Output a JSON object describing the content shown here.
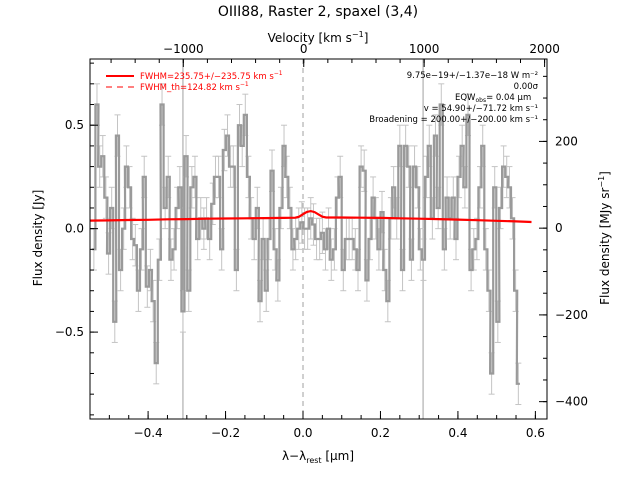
{
  "chart_data": {
    "type": "line",
    "title": "OIII88, Raster 2, spaxel (3,4)",
    "xlabel": "λ−λ",
    "xlabel_sub": "rest",
    "xlabel_unit": " [μm]",
    "ylabel": "Flux density [Jy]",
    "ylabel2": "Flux density [MJy sr",
    "ylabel2_sup": "−1",
    "ylabel2_end": "]",
    "toplabel": "Velocity [km s",
    "toplabel_sup": "−1",
    "toplabel_end": "]",
    "xlim": [
      -0.55,
      0.63
    ],
    "ylim": [
      -0.92,
      0.82
    ],
    "y2lim": [
      -440,
      390
    ],
    "top_lim": [
      -1775,
      2020
    ],
    "x_ticks": [
      -0.4,
      -0.2,
      0.0,
      0.2,
      0.4,
      0.6
    ],
    "x_tick_labels": [
      "−0.4",
      "−0.2",
      "0.0",
      "0.2",
      "0.4",
      "0.6"
    ],
    "y_ticks": [
      -0.5,
      0.0,
      0.5
    ],
    "y_tick_labels": [
      "−0.5",
      "0.0",
      "0.5"
    ],
    "y2_ticks": [
      -400,
      -200,
      0,
      200
    ],
    "y2_tick_labels": [
      "−400",
      "−200",
      "0",
      "200"
    ],
    "top_ticks": [
      -1000,
      0,
      1000,
      2000
    ],
    "top_tick_labels": [
      "−1000",
      "0",
      "1000",
      "2000"
    ],
    "vlines_x": [
      -0.31,
      0.0,
      0.31
    ],
    "legend": {
      "position": "top-left",
      "items": [
        {
          "label": "FWHM=235.75+/−235.75 km s",
          "sup": "−1",
          "style": "solid",
          "color": "#ff0000"
        },
        {
          "label": "FWHM_th=124.82 km s",
          "sup": "−1",
          "style": "dashed",
          "color": "#ff0000"
        }
      ]
    },
    "annotations": [
      "9.75e−19+/−1.37e−18 W m⁻²",
      "0.00σ",
      "EQW",
      "obs",
      "= 0.04 μm",
      "v = 54.90+/−71.72 km s⁻¹",
      "Broadening = 200.00+/−200.00 km s⁻¹"
    ],
    "series": [
      {
        "name": "spectrum",
        "style": "steps",
        "color": "#9a9a9a",
        "x": [
          -0.54,
          -0.532,
          -0.525,
          -0.517,
          -0.509,
          -0.502,
          -0.494,
          -0.486,
          -0.479,
          -0.471,
          -0.463,
          -0.456,
          -0.448,
          -0.44,
          -0.433,
          -0.425,
          -0.417,
          -0.41,
          -0.402,
          -0.394,
          -0.387,
          -0.379,
          -0.371,
          -0.364,
          -0.356,
          -0.348,
          -0.341,
          -0.333,
          -0.325,
          -0.318,
          -0.31,
          -0.302,
          -0.295,
          -0.287,
          -0.279,
          -0.272,
          -0.264,
          -0.256,
          -0.249,
          -0.241,
          -0.233,
          -0.226,
          -0.218,
          -0.21,
          -0.203,
          -0.195,
          -0.187,
          -0.18,
          -0.172,
          -0.164,
          -0.157,
          -0.149,
          -0.141,
          -0.134,
          -0.126,
          -0.118,
          -0.111,
          -0.103,
          -0.095,
          -0.088,
          -0.08,
          -0.072,
          -0.065,
          -0.057,
          -0.049,
          -0.042,
          -0.034,
          -0.026,
          -0.019,
          -0.011,
          -0.003,
          0.004,
          0.012,
          0.02,
          0.027,
          0.035,
          0.043,
          0.05,
          0.058,
          0.066,
          0.073,
          0.081,
          0.089,
          0.096,
          0.104,
          0.112,
          0.119,
          0.127,
          0.135,
          0.142,
          0.15,
          0.158,
          0.165,
          0.173,
          0.181,
          0.188,
          0.196,
          0.204,
          0.211,
          0.219,
          0.227,
          0.234,
          0.242,
          0.25,
          0.257,
          0.265,
          0.273,
          0.28,
          0.288,
          0.296,
          0.303,
          0.311,
          0.319,
          0.326,
          0.334,
          0.342,
          0.349,
          0.357,
          0.365,
          0.372,
          0.38,
          0.388,
          0.395,
          0.403,
          0.411,
          0.418,
          0.426,
          0.434,
          0.441,
          0.449,
          0.457,
          0.464,
          0.472,
          0.48,
          0.487,
          0.495,
          0.503,
          0.51,
          0.518,
          0.526,
          0.533,
          0.541,
          0.549,
          0.556
        ],
        "y": [
          -0.1,
          0.6,
          0.3,
          0.35,
          0.15,
          -0.12,
          0.1,
          -0.45,
          0.45,
          -0.2,
          0.0,
          0.3,
          0.2,
          -0.05,
          -0.08,
          -0.3,
          -0.1,
          0.25,
          -0.28,
          -0.2,
          -0.35,
          -0.65,
          -0.15,
          0.6,
          0.1,
          0.25,
          -0.15,
          -0.1,
          0.1,
          0.2,
          -0.4,
          0.35,
          -0.3,
          0.2,
          0.25,
          -0.05,
          0.05,
          0.0,
          0.05,
          -0.05,
          0.12,
          0.25,
          0.25,
          -0.1,
          0.38,
          0.45,
          0.3,
          0.3,
          -0.2,
          0.5,
          0.4,
          0.55,
          0.25,
          0.05,
          -0.05,
          0.1,
          -0.35,
          -0.05,
          -0.3,
          -0.05,
          0.28,
          -0.1,
          -0.25,
          0.1,
          0.4,
          0.25,
          0.1,
          -0.1,
          -0.05,
          0.0,
          0.03,
          0.0,
          0.0,
          0.05,
          0.02,
          -0.05,
          -0.05,
          -0.02,
          -0.1,
          0.0,
          -0.15,
          -0.1,
          0.15,
          0.25,
          -0.2,
          -0.05,
          -0.05,
          -0.05,
          -0.1,
          -0.2,
          0.3,
          0.28,
          -0.25,
          -0.05,
          0.15,
          0.05,
          -0.1,
          0.08,
          -0.2,
          -0.35,
          0.05,
          0.2,
          0.05,
          0.4,
          -0.2,
          0.4,
          0.3,
          -0.15,
          0.3,
          0.2,
          -0.1,
          -0.15,
          0.25,
          0.4,
          0.05,
          0.45,
          0.1,
          0.6,
          -0.1,
          0.15,
          0.05,
          0.15,
          -0.05,
          0.25,
          0.4,
          0.2,
          0.55,
          -0.2,
          -0.1,
          -0.05,
          0.2,
          0.4,
          -0.1,
          -0.3,
          -0.7,
          0.2,
          -0.45,
          0.1,
          0.3,
          0.25,
          0.2,
          0.05,
          -0.3,
          -0.75
        ]
      },
      {
        "name": "model",
        "style": "line",
        "color": "#ff0000",
        "x": [
          -0.55,
          -0.5,
          -0.45,
          -0.4,
          -0.35,
          -0.3,
          -0.25,
          -0.2,
          -0.15,
          -0.1,
          -0.05,
          -0.02,
          -0.01,
          0.0,
          0.01,
          0.02,
          0.03,
          0.04,
          0.05,
          0.06,
          0.08,
          0.1,
          0.15,
          0.2,
          0.25,
          0.3,
          0.35,
          0.4,
          0.45,
          0.5,
          0.55,
          0.59
        ],
        "y": [
          0.039,
          0.04,
          0.042,
          0.043,
          0.045,
          0.046,
          0.048,
          0.049,
          0.05,
          0.051,
          0.052,
          0.053,
          0.058,
          0.07,
          0.081,
          0.085,
          0.08,
          0.069,
          0.058,
          0.054,
          0.054,
          0.054,
          0.053,
          0.052,
          0.05,
          0.048,
          0.046,
          0.044,
          0.041,
          0.038,
          0.035,
          0.032
        ]
      }
    ]
  }
}
